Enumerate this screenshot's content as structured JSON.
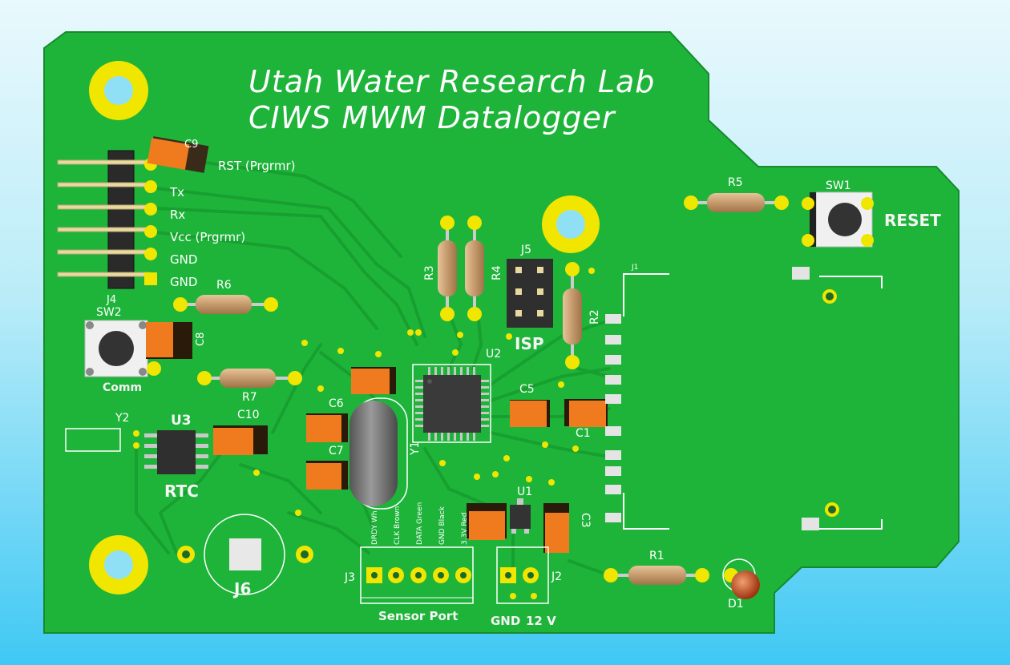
{
  "board": {
    "title_line1": "Utah Water Research Lab",
    "title_line2": "CIWS MWM Datalogger",
    "colors": {
      "pcb": "#1eb43a",
      "silk": "#ffffff",
      "pad": "#f0e600",
      "smd": "#f07a1e",
      "background": "#4ecbf2"
    }
  },
  "header_j4": {
    "ref": "J4",
    "pins": [
      "RST (Prgrmr)",
      "Tx",
      "Rx",
      "Vcc (Prgrmr)",
      "GND",
      "GND"
    ]
  },
  "refs": {
    "c9": "C9",
    "r6": "R6",
    "sw2": "SW2",
    "comm": "Comm",
    "c8": "C8",
    "r7": "R7",
    "y2": "Y2",
    "u3": "U3",
    "c10": "C10",
    "rtc": "RTC",
    "j6": "J6",
    "c6": "C6",
    "c7": "C7",
    "y1": "Y1",
    "u2": "U2",
    "c5": "C5",
    "c1": "C1",
    "r3": "R3",
    "r4": "R4",
    "j5": "J5",
    "isp": "ISP",
    "r2": "R2",
    "j1": "J1",
    "r5": "R5",
    "sw1": "SW1",
    "reset": "RESET",
    "u1": "U1",
    "c3": "C3",
    "r1": "R1",
    "d1": "D1",
    "j3": "J3",
    "j2": "J2"
  },
  "sensor_port": {
    "title": "Sensor Port",
    "wires": [
      "DRDY Wh",
      "CLK Brown",
      "DATA Green",
      "GND Black",
      "3.3V Red"
    ]
  },
  "power": {
    "gnd_label": "GND",
    "v12_label": "12 V"
  }
}
